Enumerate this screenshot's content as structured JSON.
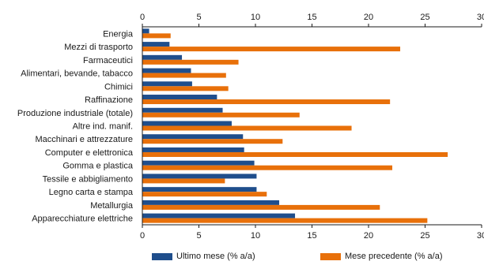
{
  "chart_data": {
    "type": "bar",
    "orientation": "horizontal",
    "categories": [
      "Energia",
      "Mezzi di trasporto",
      "Farmaceutici",
      "Alimentari, bevande, tabacco",
      "Chimici",
      "Raffinazione",
      "Produzione industriale (totale)",
      "Altre ind. manif.",
      "Macchinari e attrezzature",
      "Computer e elettronica",
      "Gomma e plastica",
      "Tessile e abbigliamento",
      "Legno carta e stampa",
      "Metallurgia",
      "Apparecchiature elettriche"
    ],
    "series": [
      {
        "name": "Ultimo mese (% a/a)",
        "color": "#1f4e8c",
        "values": [
          0.6,
          2.4,
          3.5,
          4.3,
          4.4,
          6.6,
          7.1,
          7.9,
          8.9,
          9.0,
          9.9,
          10.1,
          10.1,
          12.1,
          13.5
        ]
      },
      {
        "name": "Mese precedente (% a/a)",
        "color": "#e8700a",
        "values": [
          2.5,
          22.8,
          8.5,
          7.4,
          7.6,
          21.9,
          13.9,
          18.5,
          12.4,
          27.0,
          22.1,
          7.3,
          11.0,
          21.0,
          25.2
        ]
      }
    ],
    "xlim": [
      0,
      30
    ],
    "ticks": [
      "0",
      "5",
      "10",
      "15",
      "20",
      "25",
      "30"
    ],
    "grid": false,
    "legend_position": "bottom"
  }
}
